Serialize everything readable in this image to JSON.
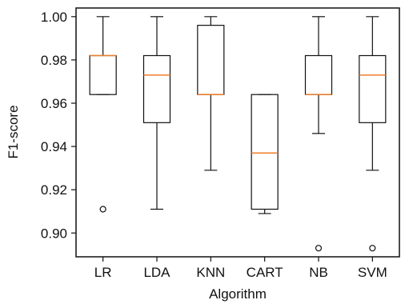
{
  "chart_data": {
    "type": "box",
    "title": "",
    "xlabel": "Algorithm",
    "ylabel": "F1-score",
    "ylim": [
      0.889,
      1.004
    ],
    "yticks": [
      0.9,
      0.92,
      0.94,
      0.96,
      0.98,
      1.0
    ],
    "ytick_labels": [
      "0.90",
      "0.92",
      "0.94",
      "0.96",
      "0.98",
      "1.00"
    ],
    "categories": [
      "LR",
      "LDA",
      "KNN",
      "CART",
      "NB",
      "SVM"
    ],
    "series": [
      {
        "category": "LR",
        "whisker_low": 0.964,
        "q1": 0.964,
        "median": 0.982,
        "q3": 0.982,
        "whisker_high": 1.0,
        "outliers": [
          0.911
        ]
      },
      {
        "category": "LDA",
        "whisker_low": 0.911,
        "q1": 0.951,
        "median": 0.973,
        "q3": 0.982,
        "whisker_high": 1.0,
        "outliers": []
      },
      {
        "category": "KNN",
        "whisker_low": 0.929,
        "q1": 0.964,
        "median": 0.964,
        "q3": 0.996,
        "whisker_high": 1.0,
        "outliers": []
      },
      {
        "category": "CART",
        "whisker_low": 0.909,
        "q1": 0.911,
        "median": 0.937,
        "q3": 0.964,
        "whisker_high": 0.964,
        "outliers": []
      },
      {
        "category": "NB",
        "whisker_low": 0.946,
        "q1": 0.964,
        "median": 0.964,
        "q3": 0.982,
        "whisker_high": 1.0,
        "outliers": [
          0.893
        ]
      },
      {
        "category": "SVM",
        "whisker_low": 0.929,
        "q1": 0.951,
        "median": 0.973,
        "q3": 0.982,
        "whisker_high": 1.0,
        "outliers": [
          0.893
        ]
      }
    ],
    "grid": false,
    "colors": {
      "box": "#111111",
      "median": "#f07f2a",
      "outlier": "#111111",
      "axis": "#111111"
    }
  }
}
